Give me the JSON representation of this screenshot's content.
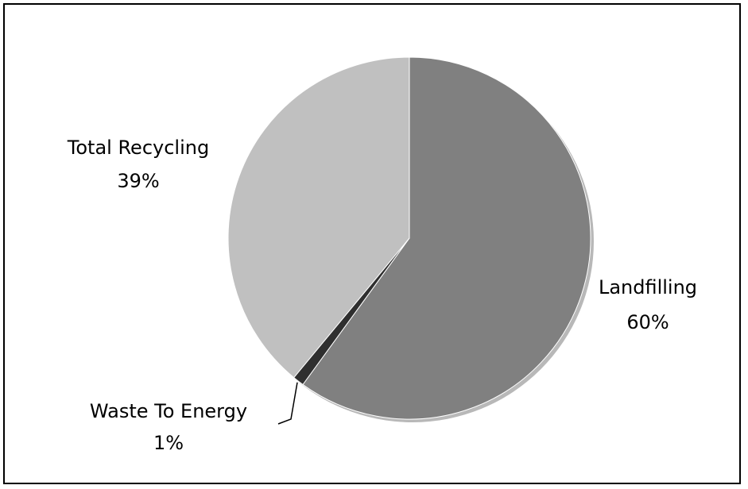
{
  "chart_data": {
    "type": "pie",
    "title": "",
    "slices": [
      {
        "label": "Landfilling",
        "value": 60,
        "pct_label": "60%",
        "color": "#808080"
      },
      {
        "label": "Waste To Energy",
        "value": 1,
        "pct_label": "1%",
        "color": "#2f2f2f"
      },
      {
        "label": "Total Recycling",
        "value": 39,
        "pct_label": "39%",
        "color": "#c0c0c0"
      }
    ],
    "start": "12 o'clock",
    "direction": "clockwise",
    "legend": "none",
    "data_labels": "outside slices"
  },
  "colors": {
    "border": "#000000",
    "background": "#ffffff",
    "shadow": "#b8b8b8",
    "slice_edge": "#ffffff"
  }
}
